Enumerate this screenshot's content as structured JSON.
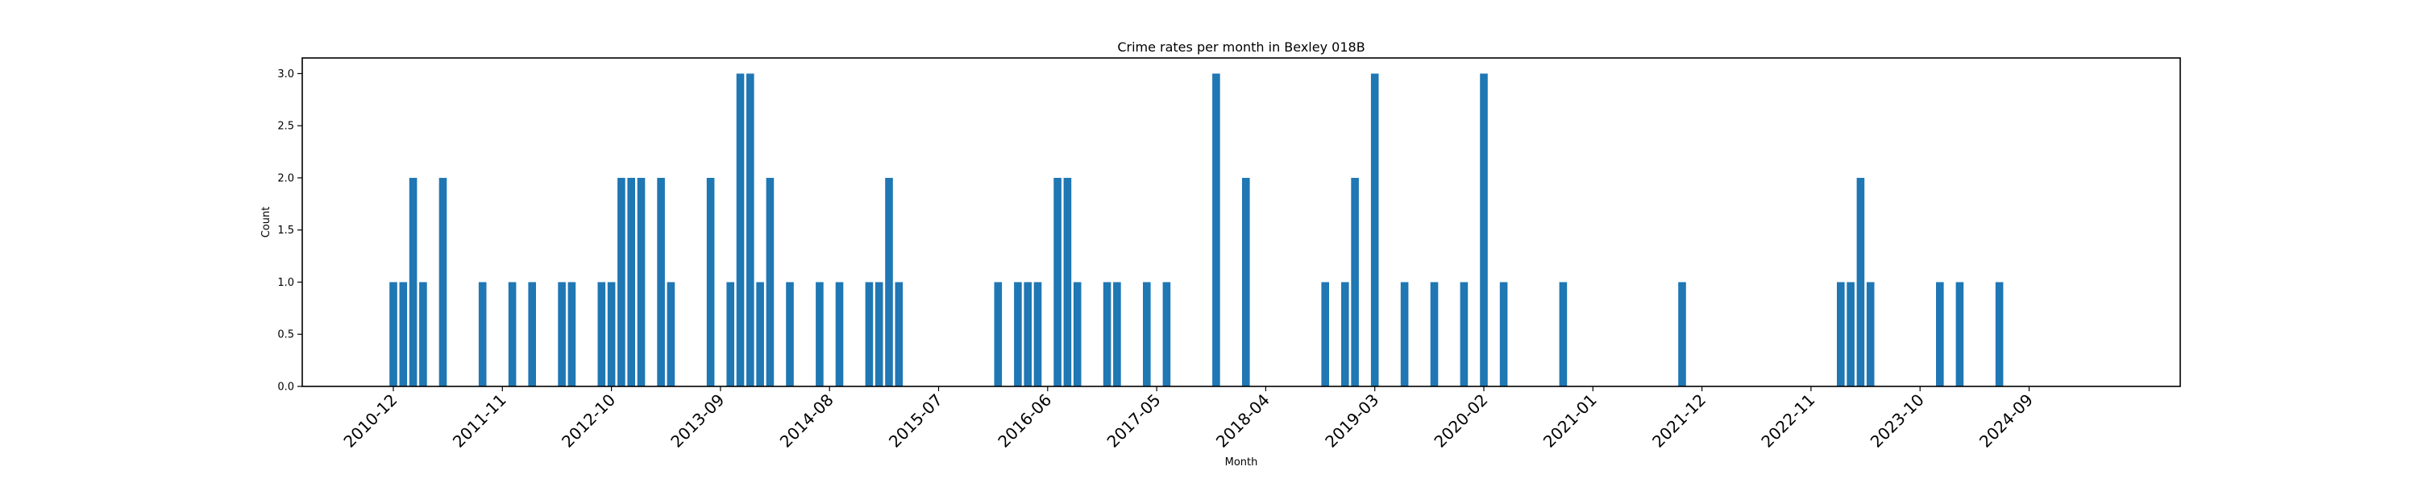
{
  "chart_data": {
    "type": "bar",
    "title": "Crime rates per month in Bexley 018B",
    "xlabel": "Month",
    "ylabel": "Count",
    "ylim": [
      0,
      3.15
    ],
    "yticks": [
      "0.0",
      "0.5",
      "1.0",
      "1.5",
      "2.0",
      "2.5",
      "3.0"
    ],
    "xticks": [
      "2010-12",
      "2011-11",
      "2012-10",
      "2013-09",
      "2014-08",
      "2015-07",
      "2016-06",
      "2017-05",
      "2018-04",
      "2019-03",
      "2020-02",
      "2021-01",
      "2021-12",
      "2022-11",
      "2023-10",
      "2024-09"
    ],
    "grid": false,
    "bar_color": "#1f77b4",
    "points": [
      {
        "x": "2010-12",
        "y": 1
      },
      {
        "x": "2011-01",
        "y": 1
      },
      {
        "x": "2011-02",
        "y": 2
      },
      {
        "x": "2011-03",
        "y": 1
      },
      {
        "x": "2011-05",
        "y": 2
      },
      {
        "x": "2011-09",
        "y": 1
      },
      {
        "x": "2011-12",
        "y": 1
      },
      {
        "x": "2012-02",
        "y": 1
      },
      {
        "x": "2012-05",
        "y": 1
      },
      {
        "x": "2012-06",
        "y": 1
      },
      {
        "x": "2012-09",
        "y": 1
      },
      {
        "x": "2012-10",
        "y": 1
      },
      {
        "x": "2012-11",
        "y": 2
      },
      {
        "x": "2012-12",
        "y": 2
      },
      {
        "x": "2013-01",
        "y": 2
      },
      {
        "x": "2013-03",
        "y": 2
      },
      {
        "x": "2013-04",
        "y": 1
      },
      {
        "x": "2013-08",
        "y": 2
      },
      {
        "x": "2013-10",
        "y": 1
      },
      {
        "x": "2013-11",
        "y": 3
      },
      {
        "x": "2013-12",
        "y": 3
      },
      {
        "x": "2014-01",
        "y": 1
      },
      {
        "x": "2014-02",
        "y": 2
      },
      {
        "x": "2014-04",
        "y": 1
      },
      {
        "x": "2014-07",
        "y": 1
      },
      {
        "x": "2014-09",
        "y": 1
      },
      {
        "x": "2014-12",
        "y": 1
      },
      {
        "x": "2015-01",
        "y": 1
      },
      {
        "x": "2015-02",
        "y": 2
      },
      {
        "x": "2015-03",
        "y": 1
      },
      {
        "x": "2016-01",
        "y": 1
      },
      {
        "x": "2016-03",
        "y": 1
      },
      {
        "x": "2016-04",
        "y": 1
      },
      {
        "x": "2016-05",
        "y": 1
      },
      {
        "x": "2016-07",
        "y": 2
      },
      {
        "x": "2016-08",
        "y": 2
      },
      {
        "x": "2016-09",
        "y": 1
      },
      {
        "x": "2016-12",
        "y": 1
      },
      {
        "x": "2017-01",
        "y": 1
      },
      {
        "x": "2017-04",
        "y": 1
      },
      {
        "x": "2017-06",
        "y": 1
      },
      {
        "x": "2017-11",
        "y": 3
      },
      {
        "x": "2018-02",
        "y": 2
      },
      {
        "x": "2018-10",
        "y": 1
      },
      {
        "x": "2018-12",
        "y": 1
      },
      {
        "x": "2019-01",
        "y": 2
      },
      {
        "x": "2019-03",
        "y": 3
      },
      {
        "x": "2019-06",
        "y": 1
      },
      {
        "x": "2019-09",
        "y": 1
      },
      {
        "x": "2019-12",
        "y": 1
      },
      {
        "x": "2020-02",
        "y": 3
      },
      {
        "x": "2020-04",
        "y": 1
      },
      {
        "x": "2020-10",
        "y": 1
      },
      {
        "x": "2021-10",
        "y": 1
      },
      {
        "x": "2023-02",
        "y": 1
      },
      {
        "x": "2023-03",
        "y": 1
      },
      {
        "x": "2023-04",
        "y": 2
      },
      {
        "x": "2023-05",
        "y": 1
      },
      {
        "x": "2023-12",
        "y": 1
      },
      {
        "x": "2024-02",
        "y": 1
      },
      {
        "x": "2024-06",
        "y": 1
      }
    ]
  }
}
